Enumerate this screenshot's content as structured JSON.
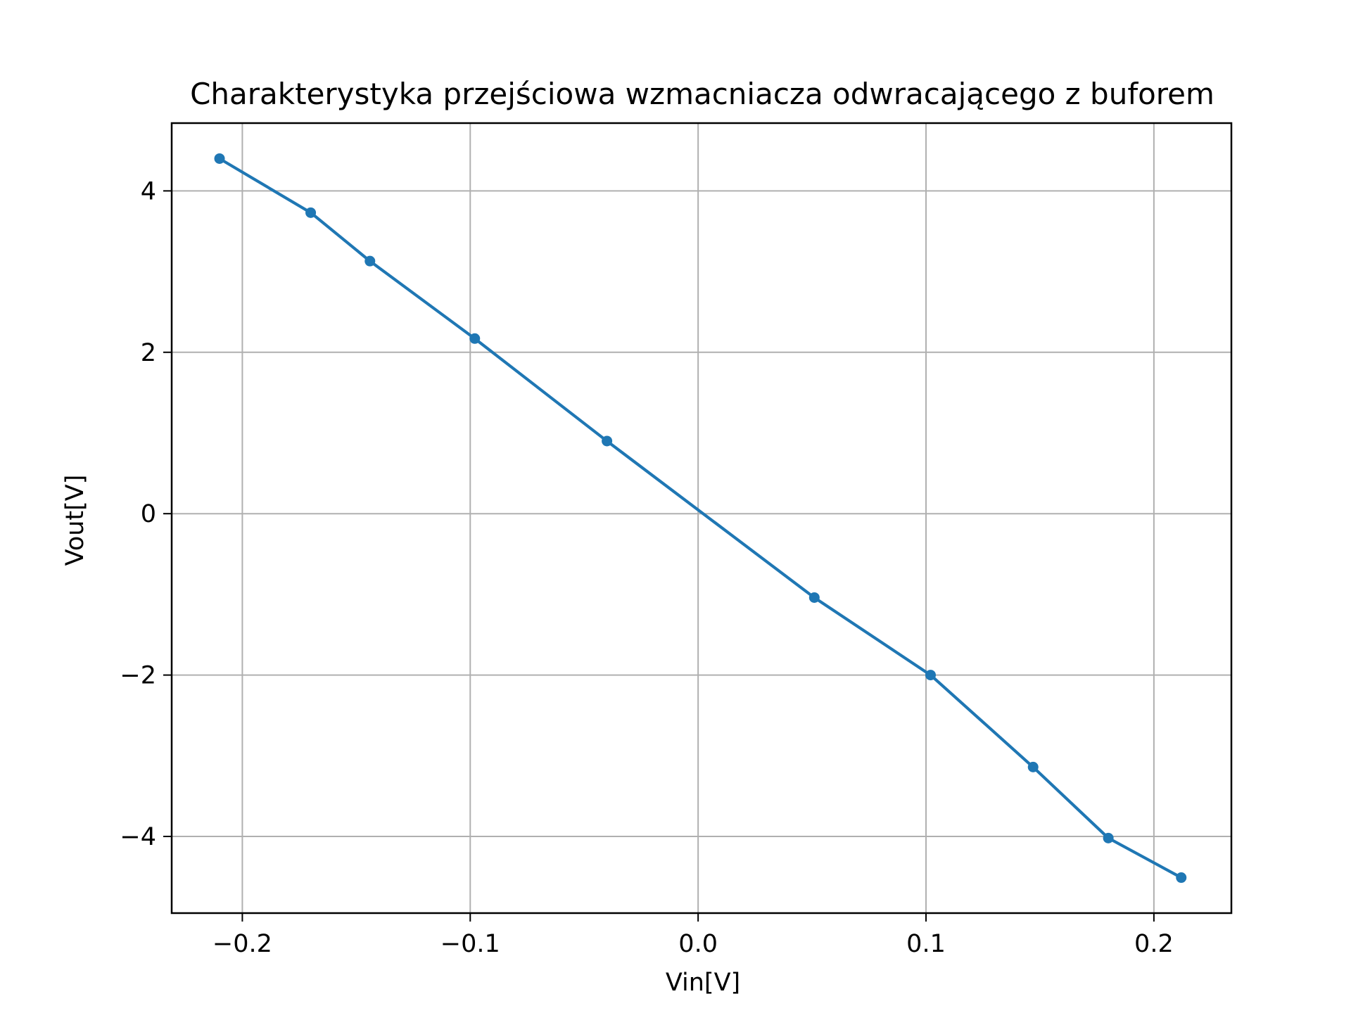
{
  "chart_data": {
    "type": "line",
    "title": "Charakterystyka przejściowa wzmacniacza odwracającego z buforem",
    "xlabel": "Vin[V]",
    "ylabel": "Vout[V]",
    "xlim": [
      -0.231,
      0.234
    ],
    "ylim": [
      -4.95,
      4.84
    ],
    "grid": true,
    "x_ticks": [
      -0.2,
      -0.1,
      0.0,
      0.1,
      0.2
    ],
    "x_tick_labels": [
      "−0.2",
      "−0.1",
      "0.0",
      "0.1",
      "0.2"
    ],
    "y_ticks": [
      -4,
      -2,
      0,
      2,
      4
    ],
    "y_tick_labels": [
      "−4",
      "−2",
      "0",
      "2",
      "4"
    ],
    "series": [
      {
        "color": "#1f77b4",
        "marker": "circle",
        "x": [
          -0.21,
          -0.17,
          -0.144,
          -0.098,
          -0.04,
          0.051,
          0.102,
          0.147,
          0.18,
          0.212
        ],
        "y": [
          4.4,
          3.73,
          3.13,
          2.17,
          0.9,
          -1.04,
          -2.0,
          -3.14,
          -4.02,
          -4.51
        ]
      }
    ]
  }
}
